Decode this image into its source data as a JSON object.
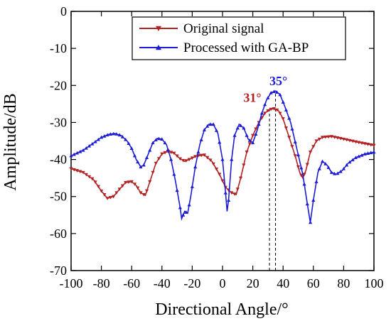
{
  "chart_data": {
    "type": "line",
    "xlabel": "Directional Angle/°",
    "ylabel": "Amplitude/dB",
    "xlim": [
      -100,
      100
    ],
    "ylim": [
      -70,
      0
    ],
    "xticks": [
      -100,
      -80,
      -60,
      -40,
      -20,
      0,
      20,
      40,
      60,
      80,
      100
    ],
    "yticks": [
      0,
      -10,
      -20,
      -30,
      -40,
      -50,
      -60,
      -70
    ],
    "grid": false,
    "legend_position": "top-right",
    "series": [
      {
        "name": "Original signal",
        "color": "#b22222",
        "marker": "triangle-down",
        "points": [
          [
            -100,
            -42.5
          ],
          [
            -92,
            -43.5
          ],
          [
            -85,
            -45.5
          ],
          [
            -80,
            -48.5
          ],
          [
            -76,
            -50.5
          ],
          [
            -72,
            -50.0
          ],
          [
            -68,
            -48.0
          ],
          [
            -64,
            -46.2
          ],
          [
            -60,
            -46.0
          ],
          [
            -57,
            -47.0
          ],
          [
            -54,
            -49.0
          ],
          [
            -51,
            -49.7
          ],
          [
            -48,
            -46.0
          ],
          [
            -44,
            -41.0
          ],
          [
            -40,
            -38.5
          ],
          [
            -36,
            -37.8
          ],
          [
            -32,
            -38.3
          ],
          [
            -28,
            -39.8
          ],
          [
            -25,
            -40.5
          ],
          [
            -22,
            -40.0
          ],
          [
            -17,
            -39.0
          ],
          [
            -12,
            -38.8
          ],
          [
            -7,
            -40.5
          ],
          [
            -2,
            -44.0
          ],
          [
            2,
            -47.5
          ],
          [
            6,
            -49.0
          ],
          [
            9,
            -49.5
          ],
          [
            12,
            -45.0
          ],
          [
            16,
            -38.0
          ],
          [
            20,
            -33.5
          ],
          [
            24,
            -30.0
          ],
          [
            28,
            -27.5
          ],
          [
            31,
            -26.5
          ],
          [
            34,
            -26.3
          ],
          [
            37,
            -26.8
          ],
          [
            40,
            -29.0
          ],
          [
            44,
            -34.0
          ],
          [
            48,
            -39.0
          ],
          [
            51,
            -43.5
          ],
          [
            53,
            -45.0
          ],
          [
            55,
            -43.0
          ],
          [
            58,
            -38.0
          ],
          [
            62,
            -35.0
          ],
          [
            66,
            -34.0
          ],
          [
            72,
            -33.8
          ],
          [
            80,
            -34.5
          ],
          [
            90,
            -35.4
          ],
          [
            100,
            -36.2
          ]
        ]
      },
      {
        "name": "Processed with GA-BP",
        "color": "#1c1cd6",
        "marker": "triangle-up",
        "points": [
          [
            -100,
            -39.0
          ],
          [
            -92,
            -37.5
          ],
          [
            -85,
            -35.5
          ],
          [
            -80,
            -34.0
          ],
          [
            -75,
            -33.2
          ],
          [
            -71,
            -33.0
          ],
          [
            -67,
            -33.5
          ],
          [
            -63,
            -35.0
          ],
          [
            -60,
            -37.0
          ],
          [
            -57,
            -40.0
          ],
          [
            -54,
            -42.0
          ],
          [
            -52,
            -41.5
          ],
          [
            -49,
            -38.5
          ],
          [
            -46,
            -35.5
          ],
          [
            -43,
            -34.3
          ],
          [
            -40,
            -34.5
          ],
          [
            -37,
            -36.0
          ],
          [
            -34,
            -40.0
          ],
          [
            -31,
            -46.0
          ],
          [
            -28,
            -53.0
          ],
          [
            -27,
            -56.0
          ],
          [
            -25,
            -54.0
          ],
          [
            -23,
            -54.5
          ],
          [
            -21,
            -50.0
          ],
          [
            -18,
            -42.0
          ],
          [
            -15,
            -36.0
          ],
          [
            -12,
            -32.0
          ],
          [
            -9,
            -30.5
          ],
          [
            -6,
            -30.5
          ],
          [
            -3,
            -33.0
          ],
          [
            0,
            -40.0
          ],
          [
            2,
            -49.0
          ],
          [
            3,
            -54.0
          ],
          [
            4,
            -51.0
          ],
          [
            6,
            -40.0
          ],
          [
            8,
            -33.5
          ],
          [
            11,
            -30.5
          ],
          [
            14,
            -31.5
          ],
          [
            17,
            -34.5
          ],
          [
            20,
            -35.5
          ],
          [
            23,
            -32.0
          ],
          [
            26,
            -27.5
          ],
          [
            29,
            -24.0
          ],
          [
            32,
            -22.0
          ],
          [
            35,
            -21.5
          ],
          [
            38,
            -22.5
          ],
          [
            41,
            -25.5
          ],
          [
            45,
            -30.0
          ],
          [
            49,
            -37.0
          ],
          [
            53,
            -44.0
          ],
          [
            56,
            -52.0
          ],
          [
            58,
            -57.0
          ],
          [
            60,
            -51.0
          ],
          [
            63,
            -43.5
          ],
          [
            66,
            -40.5
          ],
          [
            69,
            -41.5
          ],
          [
            72,
            -43.5
          ],
          [
            75,
            -44.0
          ],
          [
            79,
            -43.0
          ],
          [
            83,
            -41.0
          ],
          [
            88,
            -39.5
          ],
          [
            94,
            -38.5
          ],
          [
            100,
            -38.0
          ]
        ]
      }
    ],
    "annotations": [
      {
        "text": "31°",
        "x": 31,
        "color": "#b22222"
      },
      {
        "text": "35°",
        "x": 35,
        "color": "#1c1cd6"
      }
    ]
  }
}
